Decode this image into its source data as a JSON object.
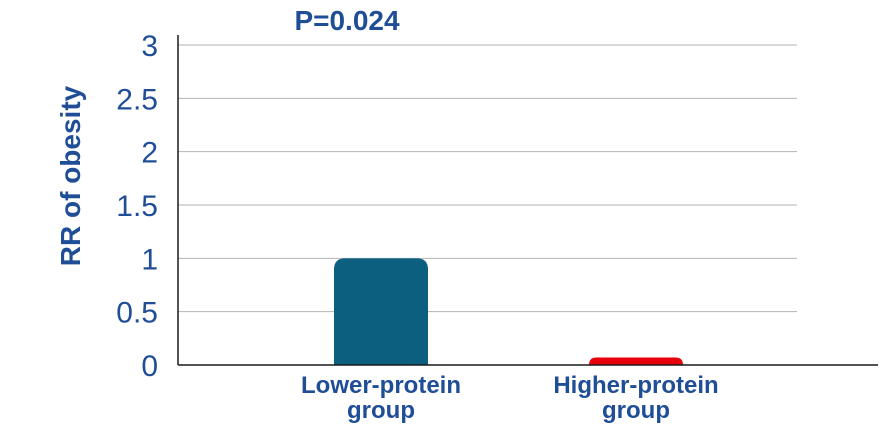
{
  "chart_data": {
    "type": "bar",
    "title": "",
    "annotation": "P=0.024",
    "ylabel": "RR of obesity",
    "xlabel": "",
    "ylim": [
      0,
      3
    ],
    "yticks": [
      0,
      0.5,
      1,
      1.5,
      2,
      2.5,
      3
    ],
    "ytick_labels": [
      "0",
      "0.5",
      "1",
      "1.5",
      "2",
      "2.5",
      "3"
    ],
    "grid": true,
    "categories": [
      {
        "line1": "Lower-protein",
        "line2": "group"
      },
      {
        "line1": "Higher-protein",
        "line2": "group"
      }
    ],
    "values": [
      1.0,
      0.07
    ],
    "colors": [
      "#0c5f7e",
      "#e8000b"
    ],
    "axis_color": "#1a1a1a",
    "grid_color": "#b3b3b3",
    "text_color": "#1f4e96"
  }
}
